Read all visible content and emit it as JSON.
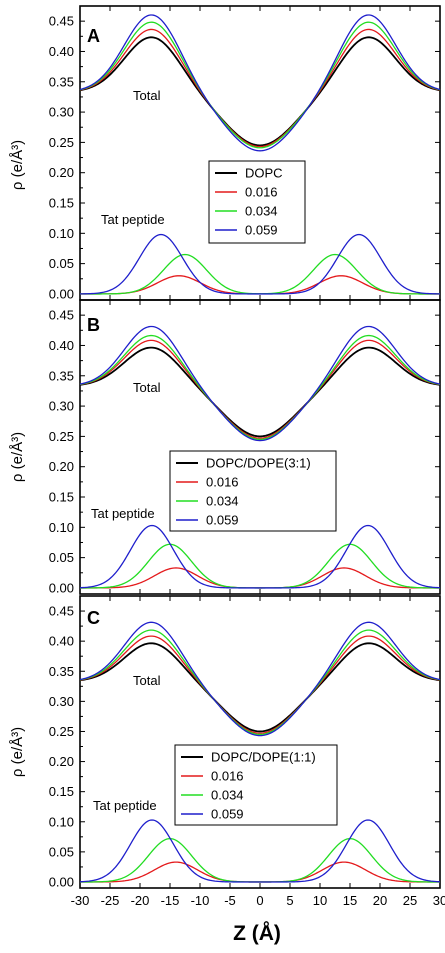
{
  "figure": {
    "xlabel": "Z (Å)",
    "ylabel": "ρ (e/Å³)",
    "x_ticks": [
      "-30",
      "-25",
      "-20",
      "-15",
      "-10",
      "-5",
      "0",
      "5",
      "10",
      "15",
      "20",
      "25",
      "30"
    ]
  },
  "chart_data": [
    {
      "type": "line",
      "panel_label": "A",
      "xlim": [
        -30,
        30
      ],
      "ylim": [
        -0.01,
        0.475
      ],
      "y_ticks": [
        "0.00",
        "0.05",
        "0.10",
        "0.15",
        "0.20",
        "0.25",
        "0.30",
        "0.35",
        "0.40",
        "0.45"
      ],
      "annotations": {
        "total": "Total",
        "peptide": "Tat peptide"
      },
      "legend": {
        "placement": "center",
        "entries": [
          {
            "label": "DOPC",
            "color": "#000000"
          },
          {
            "label": "0.016",
            "color": "#e41a1c"
          },
          {
            "label": "0.034",
            "color": "#22dd22"
          },
          {
            "label": "0.059",
            "color": "#1f1fcc"
          }
        ]
      },
      "series": [
        {
          "name": "DOPC",
          "group": "total",
          "color": "#000000",
          "peak_z": 18.0,
          "peak_rho": 0.425,
          "center_rho": 0.245
        },
        {
          "name": "0.016",
          "group": "total",
          "color": "#e41a1c",
          "peak_z": 18.0,
          "peak_rho": 0.438,
          "center_rho": 0.243
        },
        {
          "name": "0.034",
          "group": "total",
          "color": "#22dd22",
          "peak_z": 18.0,
          "peak_rho": 0.45,
          "center_rho": 0.241
        },
        {
          "name": "0.059",
          "group": "total",
          "color": "#1f1fcc",
          "peak_z": 18.0,
          "peak_rho": 0.462,
          "center_rho": 0.236
        },
        {
          "name": "0.016",
          "group": "peptide",
          "color": "#e41a1c",
          "peak_z": 13.5,
          "peak_rho": 0.03
        },
        {
          "name": "0.034",
          "group": "peptide",
          "color": "#22dd22",
          "peak_z": 12.5,
          "peak_rho": 0.065
        },
        {
          "name": "0.059",
          "group": "peptide",
          "color": "#1f1fcc",
          "peak_z": 16.5,
          "peak_rho": 0.098
        }
      ]
    },
    {
      "type": "line",
      "panel_label": "B",
      "xlim": [
        -30,
        30
      ],
      "ylim": [
        -0.01,
        0.475
      ],
      "y_ticks": [
        "0.00",
        "0.05",
        "0.10",
        "0.15",
        "0.20",
        "0.25",
        "0.30",
        "0.35",
        "0.40",
        "0.45"
      ],
      "annotations": {
        "total": "Total",
        "peptide": "Tat peptide"
      },
      "legend": {
        "placement": "center",
        "entries": [
          {
            "label": "DOPC/DOPE(3:1)",
            "color": "#000000"
          },
          {
            "label": "0.016",
            "color": "#e41a1c"
          },
          {
            "label": "0.034",
            "color": "#22dd22"
          },
          {
            "label": "0.059",
            "color": "#1f1fcc"
          }
        ]
      },
      "series": [
        {
          "name": "DOPC/DOPE(3:1)",
          "group": "total",
          "color": "#000000",
          "peak_z": 18.0,
          "peak_rho": 0.398,
          "center_rho": 0.25
        },
        {
          "name": "0.016",
          "group": "total",
          "color": "#e41a1c",
          "peak_z": 18.0,
          "peak_rho": 0.41,
          "center_rho": 0.247
        },
        {
          "name": "0.034",
          "group": "total",
          "color": "#22dd22",
          "peak_z": 18.0,
          "peak_rho": 0.418,
          "center_rho": 0.245
        },
        {
          "name": "0.059",
          "group": "total",
          "color": "#1f1fcc",
          "peak_z": 18.0,
          "peak_rho": 0.433,
          "center_rho": 0.243
        },
        {
          "name": "0.016",
          "group": "peptide",
          "color": "#e41a1c",
          "peak_z": 14.0,
          "peak_rho": 0.033
        },
        {
          "name": "0.034",
          "group": "peptide",
          "color": "#22dd22",
          "peak_z": 15.0,
          "peak_rho": 0.072
        },
        {
          "name": "0.059",
          "group": "peptide",
          "color": "#1f1fcc",
          "peak_z": 18.0,
          "peak_rho": 0.103
        }
      ]
    },
    {
      "type": "line",
      "panel_label": "C",
      "xlim": [
        -30,
        30
      ],
      "ylim": [
        -0.01,
        0.475
      ],
      "y_ticks": [
        "0.00",
        "0.05",
        "0.10",
        "0.15",
        "0.20",
        "0.25",
        "0.30",
        "0.35",
        "0.40",
        "0.45"
      ],
      "annotations": {
        "total": "Total",
        "peptide": "Tat peptide"
      },
      "legend": {
        "placement": "bottom-left",
        "entries": [
          {
            "label": "DOPC/DOPE(1:1)",
            "color": "#000000"
          },
          {
            "label": "0.016",
            "color": "#e41a1c"
          },
          {
            "label": "0.034",
            "color": "#22dd22"
          },
          {
            "label": "0.059",
            "color": "#1f1fcc"
          }
        ]
      },
      "series": [
        {
          "name": "DOPC/DOPE(1:1)",
          "group": "total",
          "color": "#000000",
          "peak_z": 18.0,
          "peak_rho": 0.398,
          "center_rho": 0.25
        },
        {
          "name": "0.016",
          "group": "total",
          "color": "#e41a1c",
          "peak_z": 18.0,
          "peak_rho": 0.41,
          "center_rho": 0.247
        },
        {
          "name": "0.034",
          "group": "total",
          "color": "#22dd22",
          "peak_z": 18.0,
          "peak_rho": 0.42,
          "center_rho": 0.245
        },
        {
          "name": "0.059",
          "group": "total",
          "color": "#1f1fcc",
          "peak_z": 18.0,
          "peak_rho": 0.433,
          "center_rho": 0.243
        },
        {
          "name": "0.016",
          "group": "peptide",
          "color": "#e41a1c",
          "peak_z": 14.0,
          "peak_rho": 0.033
        },
        {
          "name": "0.034",
          "group": "peptide",
          "color": "#22dd22",
          "peak_z": 15.0,
          "peak_rho": 0.072
        },
        {
          "name": "0.059",
          "group": "peptide",
          "color": "#1f1fcc",
          "peak_z": 18.0,
          "peak_rho": 0.103
        }
      ]
    }
  ]
}
